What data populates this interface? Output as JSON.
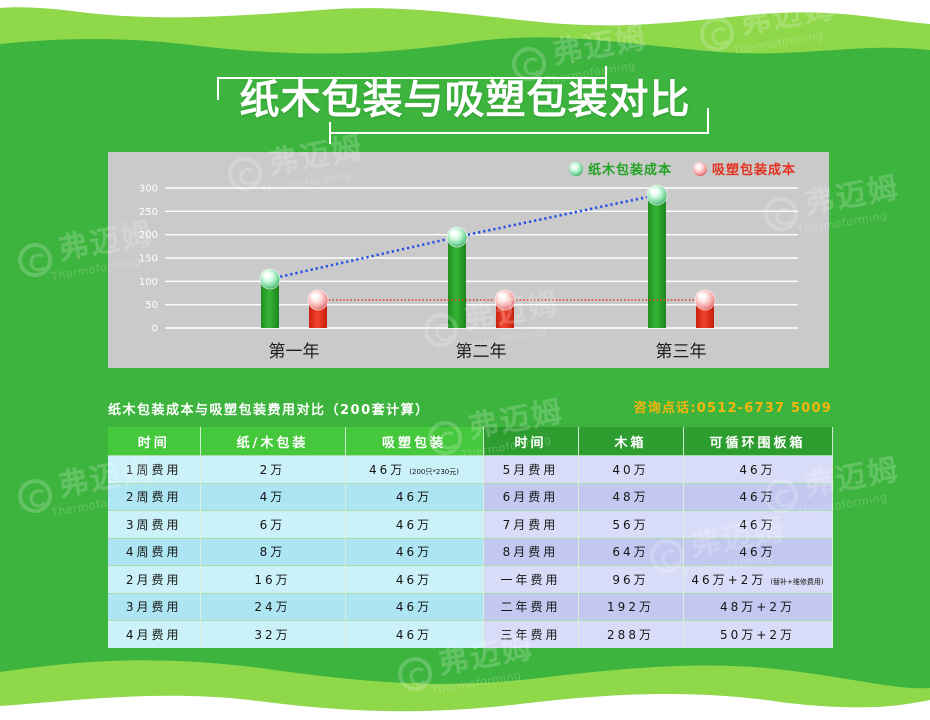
{
  "title": "纸木包装与吸塑包装对比",
  "watermark": {
    "cn": "弗迈姆",
    "en": "Thermoforming"
  },
  "colors": {
    "background": "#3cb43d",
    "accent_lime": "#8fd84a",
    "panel": "#cacaca",
    "contact": "#f7b50d",
    "header_left": "#45c83c",
    "header_right": "#2d9d2f"
  },
  "chart_data": {
    "type": "bar",
    "categories": [
      "第一年",
      "第二年",
      "第三年"
    ],
    "series": [
      {
        "name": "纸木包装成本",
        "values": [
          105,
          195,
          285
        ],
        "color": "#2aa52a",
        "line_color": "#2450e8"
      },
      {
        "name": "吸塑包装成本",
        "values": [
          60,
          60,
          60
        ],
        "color": "#e3321f",
        "line_color": "#e43b2a"
      }
    ],
    "yticks": [
      0,
      50,
      100,
      150,
      200,
      250,
      300
    ],
    "ylim": [
      0,
      300
    ],
    "grid": true,
    "legend": "top-right"
  },
  "table": {
    "caption": "纸木包装成本与吸塑包装费用对比（200套计算）",
    "contact": "咨询点话:0512-6737 5009",
    "headers": [
      "时间",
      "纸/木包装",
      "吸塑包装",
      "时间",
      "木箱",
      "可循环围板箱"
    ],
    "rows": [
      [
        "1周费用",
        "2万",
        "46万",
        "5月费用",
        "40万",
        "46万"
      ],
      [
        "2周费用",
        "4万",
        "46万",
        "6月费用",
        "48万",
        "46万"
      ],
      [
        "3周费用",
        "6万",
        "46万",
        "7月费用",
        "56万",
        "46万"
      ],
      [
        "4周费用",
        "8万",
        "46万",
        "8月费用",
        "64万",
        "46万"
      ],
      [
        "2月费用",
        "16万",
        "46万",
        "一年费用",
        "96万",
        "46万+2万"
      ],
      [
        "3月费用",
        "24万",
        "46万",
        "二年费用",
        "192万",
        "48万+2万"
      ],
      [
        "4月费用",
        "32万",
        "46万",
        "三年费用",
        "288万",
        "50万+2万"
      ]
    ],
    "notes": {
      "row1_blister": "(200只*230元)",
      "row5_recyclable": "(替补+维修费用)"
    }
  }
}
